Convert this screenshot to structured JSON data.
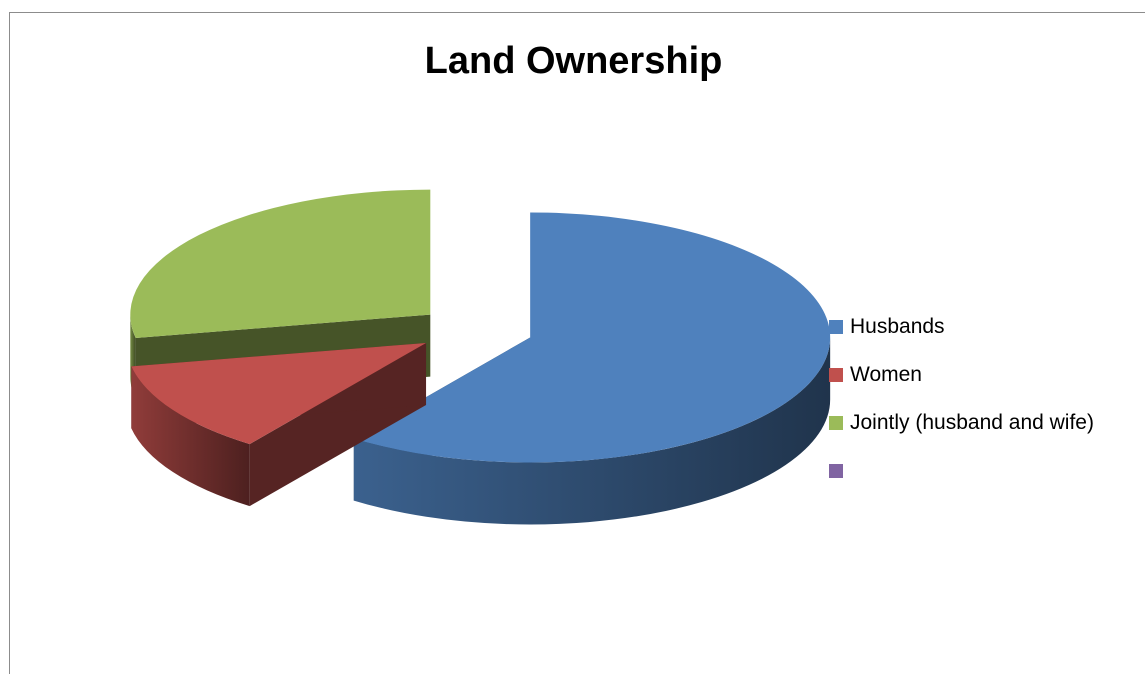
{
  "chart_data": {
    "type": "pie",
    "title": "Land Ownership",
    "categories": [
      "Husbands",
      "Women",
      "Jointly (husband and wife)",
      ""
    ],
    "values": [
      60,
      12,
      28,
      0
    ],
    "colors": [
      "#4f81bd",
      "#c0504d",
      "#9bbb59",
      "#8064a2"
    ],
    "three_d": true,
    "exploded": true,
    "legend": "right"
  }
}
